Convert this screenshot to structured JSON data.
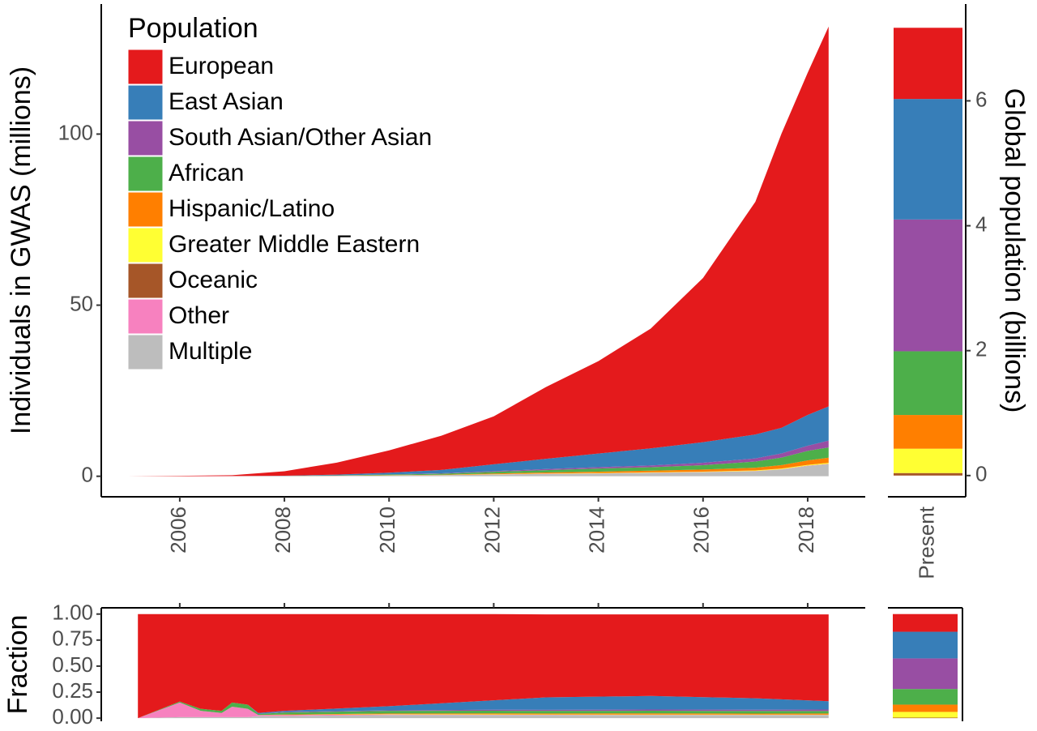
{
  "chart_data": [
    {
      "type": "area",
      "stacked": true,
      "y_label": "Individuals in GWAS (millions)",
      "legend_title": "Population",
      "legend": "top-left",
      "x": [
        2005,
        2006,
        2007,
        2008,
        2009,
        2010,
        2011,
        2012,
        2013,
        2014,
        2015,
        2016,
        2017,
        2017.5,
        2018,
        2018.4
      ],
      "xlim": [
        2004.5,
        2019.1
      ],
      "xticks": [
        2006,
        2008,
        2010,
        2012,
        2014,
        2016,
        2018
      ],
      "ylim": [
        -6,
        138
      ],
      "yticks": [
        0,
        50,
        100
      ],
      "series": [
        {
          "name": "European",
          "color": "#e41a1c",
          "values": [
            0,
            0.1,
            0.25,
            1.3,
            3.5,
            6.5,
            10,
            14,
            21,
            27,
            35,
            48,
            68,
            86,
            100,
            111
          ]
        },
        {
          "name": "East Asian",
          "color": "#377eb8",
          "values": [
            0,
            0,
            0,
            0.05,
            0.2,
            0.5,
            1,
            2,
            3,
            4,
            5,
            6,
            7,
            7.5,
            9,
            10
          ]
        },
        {
          "name": "South Asian/Other Asian",
          "color": "#984ea3",
          "values": [
            0,
            0,
            0,
            0.01,
            0.03,
            0.05,
            0.1,
            0.2,
            0.3,
            0.4,
            0.5,
            0.7,
            0.9,
            1.2,
            1.5,
            2
          ]
        },
        {
          "name": "African",
          "color": "#4daf4a",
          "values": [
            0,
            0,
            0.01,
            0.03,
            0.1,
            0.2,
            0.3,
            0.5,
            0.7,
            0.9,
            1,
            1.3,
            1.8,
            2.2,
            2.8,
            3
          ]
        },
        {
          "name": "Hispanic/Latino",
          "color": "#ff7f00",
          "values": [
            0,
            0,
            0,
            0.01,
            0.02,
            0.05,
            0.1,
            0.2,
            0.3,
            0.4,
            0.5,
            0.6,
            0.8,
            1,
            1.3,
            1.5
          ]
        },
        {
          "name": "Greater Middle Eastern",
          "color": "#ffff33",
          "values": [
            0,
            0,
            0,
            0,
            0.01,
            0.02,
            0.03,
            0.05,
            0.05,
            0.1,
            0.1,
            0.1,
            0.15,
            0.2,
            0.2,
            0.3
          ]
        },
        {
          "name": "Oceanic",
          "color": "#a65628",
          "values": [
            0,
            0,
            0,
            0,
            0,
            0,
            0,
            0,
            0,
            0,
            0,
            0,
            0.01,
            0.01,
            0.02,
            0.02
          ]
        },
        {
          "name": "Other",
          "color": "#f781bf",
          "values": [
            0,
            0.02,
            0.03,
            0.02,
            0.02,
            0.03,
            0.03,
            0.05,
            0.05,
            0.05,
            0.05,
            0.05,
            0.05,
            0.05,
            0.1,
            0.1
          ]
        },
        {
          "name": "Multiple",
          "color": "#bdbdbd",
          "values": [
            0,
            0,
            0.02,
            0.05,
            0.1,
            0.2,
            0.3,
            0.5,
            0.7,
            0.8,
            1,
            1.2,
            1.5,
            2,
            3,
            3.5
          ]
        }
      ]
    },
    {
      "type": "bar",
      "stacked": true,
      "y2_label": "Global population (billions)",
      "categories": [
        "Present"
      ],
      "y2lim": [
        -0.34,
        7.55
      ],
      "y2ticks": [
        0,
        2,
        4,
        6
      ],
      "series": [
        {
          "color": "#e41a1c",
          "axis": "y2",
          "values": [
            1.14
          ]
        },
        {
          "color": "#377eb8",
          "axis": "y2",
          "values": [
            1.93
          ]
        },
        {
          "color": "#984ea3",
          "axis": "y2",
          "values": [
            2.11
          ]
        },
        {
          "color": "#4daf4a",
          "axis": "y2",
          "values": [
            1.02
          ]
        },
        {
          "color": "#ff7f00",
          "axis": "y2",
          "values": [
            0.54
          ]
        },
        {
          "color": "#ffff33",
          "axis": "y2",
          "values": [
            0.39
          ]
        },
        {
          "color": "#a65628",
          "axis": "y2",
          "values": [
            0.04
          ]
        },
        {
          "color": "#f781bf",
          "axis": "y2",
          "values": [
            0
          ]
        },
        {
          "color": "#bdbdbd",
          "axis": "y2",
          "values": [
            0
          ]
        }
      ]
    },
    {
      "type": "area",
      "stacked": true,
      "y_label": "Fraction",
      "x": [
        2005.2,
        2006,
        2006.4,
        2006.8,
        2007,
        2007.3,
        2007.5,
        2008,
        2010,
        2012,
        2013,
        2015,
        2017,
        2018.4
      ],
      "xlim": [
        2004.5,
        2019.1
      ],
      "xticks": [
        2006,
        2008,
        2010,
        2012,
        2014,
        2016,
        2018
      ],
      "ylim": [
        -0.03,
        1.06
      ],
      "yticks": [
        {
          "value": 0,
          "label": "0.00"
        },
        {
          "value": 0.25,
          "label": "0.25"
        },
        {
          "value": 0.5,
          "label": "0.50"
        },
        {
          "value": 0.75,
          "label": "0.75"
        },
        {
          "value": 1,
          "label": "1.00"
        }
      ],
      "series": [
        {
          "color": "#e41a1c",
          "values": [
            1,
            0.84,
            0.91,
            0.93,
            0.85,
            0.87,
            0.95,
            0.93,
            0.885,
            0.829,
            0.797,
            0.784,
            0.806,
            0.834
          ]
        },
        {
          "color": "#377eb8",
          "values": [
            0,
            0,
            0,
            0,
            0,
            0,
            0.01,
            0.01,
            0.04,
            0.09,
            0.12,
            0.13,
            0.11,
            0.08
          ]
        },
        {
          "color": "#984ea3",
          "values": [
            0,
            0,
            0,
            0,
            0,
            0,
            0,
            0.005,
            0.005,
            0.01,
            0.01,
            0.012,
            0.012,
            0.015
          ]
        },
        {
          "color": "#4daf4a",
          "values": [
            0,
            0.01,
            0.02,
            0.02,
            0.04,
            0.04,
            0.01,
            0.02,
            0.025,
            0.025,
            0.025,
            0.025,
            0.025,
            0.023
          ]
        },
        {
          "color": "#ff7f00",
          "values": [
            0,
            0,
            0,
            0,
            0,
            0,
            0,
            0.005,
            0.007,
            0.01,
            0.01,
            0.012,
            0.01,
            0.012
          ]
        },
        {
          "color": "#ffff33",
          "values": [
            0,
            0,
            0,
            0,
            0,
            0,
            0,
            0,
            0.003,
            0.003,
            0.003,
            0.003,
            0.003,
            0.002
          ]
        },
        {
          "color": "#a65628",
          "values": [
            0,
            0,
            0,
            0,
            0,
            0,
            0,
            0,
            0,
            0,
            0,
            0,
            0,
            0
          ]
        },
        {
          "color": "#f781bf",
          "values": [
            0,
            0.14,
            0.06,
            0.04,
            0.1,
            0.08,
            0.01,
            0.01,
            0.005,
            0.003,
            0.002,
            0.001,
            0.001,
            0.001
          ]
        },
        {
          "color": "#bdbdbd",
          "values": [
            0,
            0.01,
            0.01,
            0.01,
            0.01,
            0.01,
            0.02,
            0.02,
            0.03,
            0.03,
            0.03,
            0.03,
            0.03,
            0.03
          ]
        }
      ]
    },
    {
      "type": "bar",
      "stacked": true,
      "ylim": [
        -0.03,
        1.06
      ],
      "series": [
        {
          "color": "#e41a1c",
          "values": [
            0.17
          ]
        },
        {
          "color": "#377eb8",
          "values": [
            0.256
          ]
        },
        {
          "color": "#984ea3",
          "values": [
            0.294
          ]
        },
        {
          "color": "#4daf4a",
          "values": [
            0.15
          ]
        },
        {
          "color": "#ff7f00",
          "values": [
            0.07
          ]
        },
        {
          "color": "#ffff33",
          "values": [
            0.055
          ]
        },
        {
          "color": "#a65628",
          "values": [
            0.005
          ]
        },
        {
          "color": "#f781bf",
          "values": [
            0
          ]
        },
        {
          "color": "#bdbdbd",
          "values": [
            0
          ]
        }
      ]
    }
  ]
}
